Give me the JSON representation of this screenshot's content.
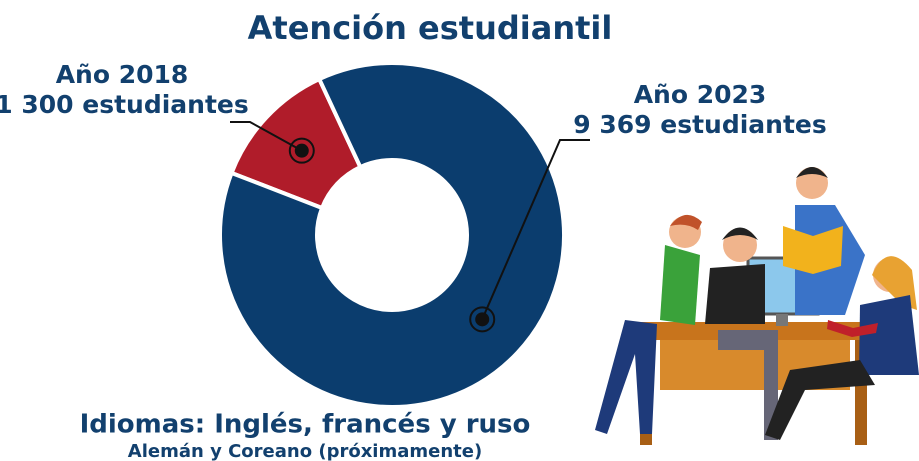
{
  "chart_data": {
    "type": "donut",
    "title": "Atención estudiantil",
    "categories": [
      "Año 2018",
      "Año 2023"
    ],
    "values": [
      1300,
      9369
    ],
    "value_labels": [
      "1 300 estudiantes",
      "9 369 estudiantes"
    ],
    "colors": [
      "#b01c2a",
      "#0b3d6e"
    ],
    "annotations": [
      "Idiomas: Inglés, francés y ruso",
      "Alemán y Coreano (próximamente)"
    ]
  }
}
